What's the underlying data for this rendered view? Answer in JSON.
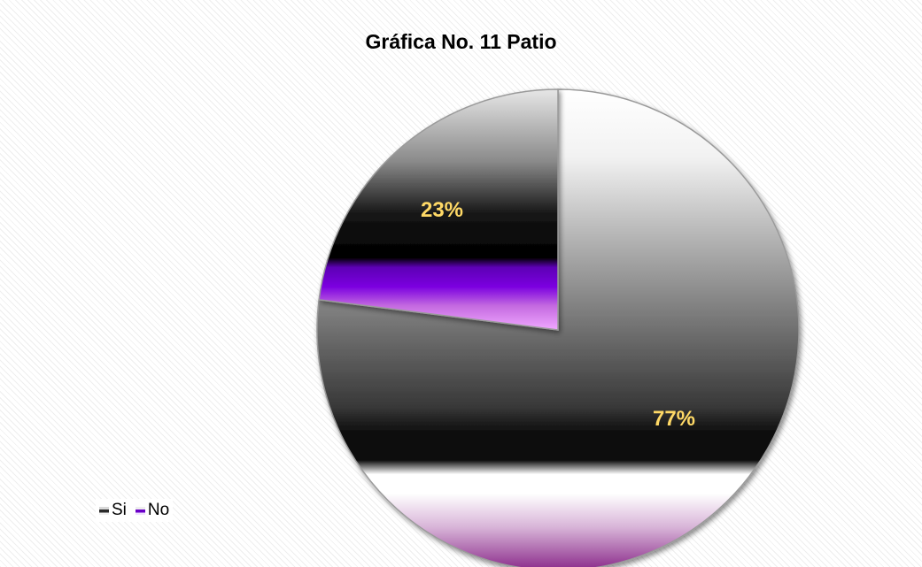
{
  "chart_data": {
    "type": "pie",
    "title": "Gráfica No. 11 Patio",
    "categories": [
      "Si",
      "No"
    ],
    "values": [
      77,
      23
    ],
    "data_labels": [
      "77%",
      "23%"
    ],
    "colors": [
      "#3a3a3a",
      "#7a1fd6"
    ],
    "label_color": "#ffd966",
    "legend_position": "bottom-left"
  }
}
